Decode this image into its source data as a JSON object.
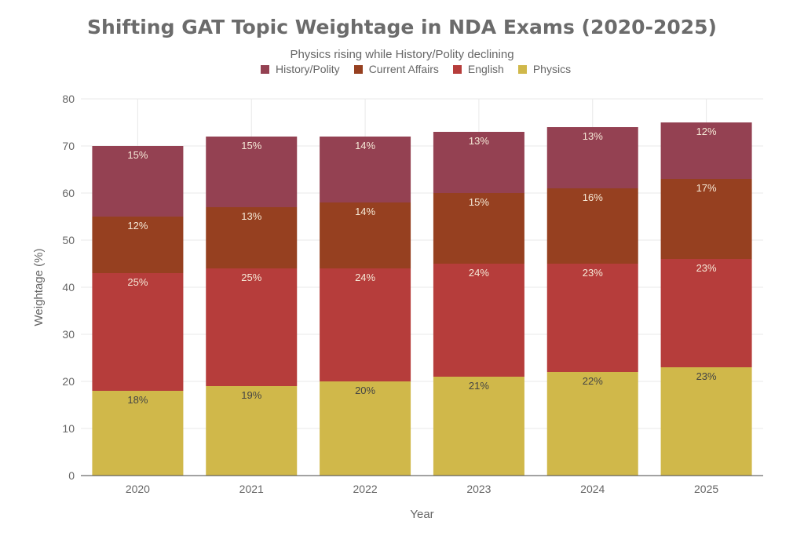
{
  "chart_data": {
    "type": "bar",
    "stacked": true,
    "title": "Shifting GAT Topic Weightage in NDA Exams (2020-2025)",
    "subtitle": "Physics rising while History/Polity declining",
    "xlabel": "Year",
    "ylabel": "Weightage (%)",
    "ylim": [
      0,
      80
    ],
    "yticks": [
      0,
      10,
      20,
      30,
      40,
      50,
      60,
      70,
      80
    ],
    "grid": true,
    "legend_position": "top",
    "categories": [
      "2020",
      "2021",
      "2022",
      "2023",
      "2024",
      "2025"
    ],
    "series": [
      {
        "name": "Physics",
        "color": "#d0b84a",
        "label_color": "#444444",
        "values": [
          18,
          19,
          20,
          21,
          22,
          23
        ]
      },
      {
        "name": "English",
        "color": "#b63d3b",
        "label_color": "#f6ead8",
        "values": [
          25,
          25,
          24,
          24,
          23,
          23
        ]
      },
      {
        "name": "Current Affairs",
        "color": "#964020",
        "label_color": "#f6ead8",
        "values": [
          12,
          13,
          14,
          15,
          16,
          17
        ]
      },
      {
        "name": "History/Polity",
        "color": "#944152",
        "label_color": "#f6ead8",
        "values": [
          15,
          15,
          14,
          13,
          13,
          12
        ]
      }
    ],
    "legend_order": [
      "History/Polity",
      "Current Affairs",
      "English",
      "Physics"
    ],
    "data_label_suffix": "%"
  }
}
